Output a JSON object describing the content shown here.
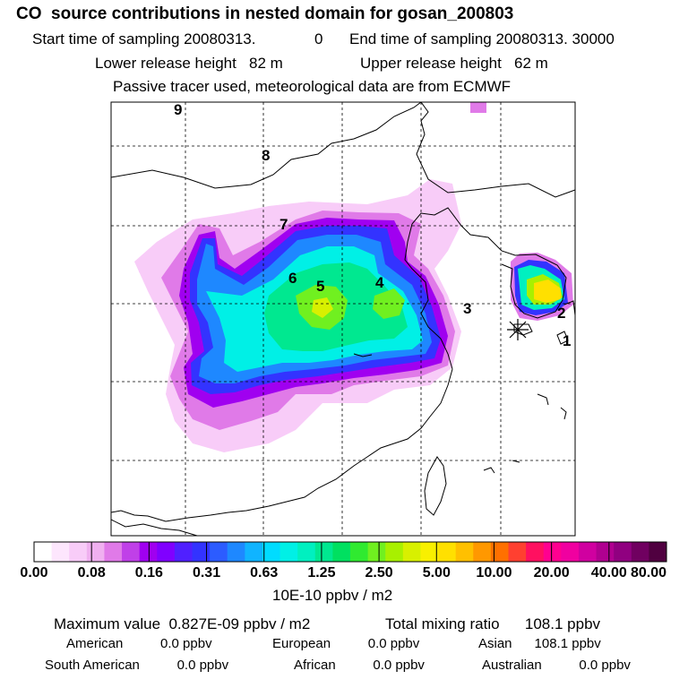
{
  "header": {
    "title": "CO  source contributions in nested domain for gosan_200803",
    "start_label": "Start time of sampling 20080313.",
    "start_hour": "0",
    "end_label": "End time of sampling 20080313. 30000",
    "lower_release": "Lower release height   82 m",
    "upper_release": "Upper release height   62 m",
    "tracer_note": "Passive tracer used, meteorological data are from ECMWF"
  },
  "map": {
    "region_labels": [
      "9",
      "8",
      "7",
      "6",
      "5",
      "4",
      "3",
      "2",
      "1"
    ],
    "receptor_marker": "asterisk-icon"
  },
  "colorbar": {
    "labels": [
      "0.00",
      "0.08",
      "0.16",
      "0.31",
      "0.63",
      "1.25",
      "2.50",
      "5.00",
      "10.00",
      "20.00",
      "40.00",
      "80.00"
    ],
    "unit": "10E-10 ppbv / m2",
    "colors": [
      "#ffffff",
      "#fde6fd",
      "#f8ccf8",
      "#f0b0f0",
      "#e07ae8",
      "#c040e8",
      "#a000f0",
      "#8000ff",
      "#5020ff",
      "#3333ff",
      "#2c5cff",
      "#1e88ff",
      "#10b4ff",
      "#00dcff",
      "#00f0e6",
      "#00f0c0",
      "#00e890",
      "#00e060",
      "#30ea30",
      "#70f020",
      "#a8f000",
      "#d8f000",
      "#f8f000",
      "#ffe000",
      "#ffc000",
      "#ff9800",
      "#ff7000",
      "#ff4030",
      "#ff1060",
      "#ff0090",
      "#f000a0",
      "#d000a0",
      "#b00090",
      "#900080",
      "#700060",
      "#500040"
    ]
  },
  "footer": {
    "max_value": "Maximum value  0.827E-09 ppbv / m2",
    "total_mixing": "Total mixing ratio      108.1 ppbv",
    "american": "American          0.0 ppbv",
    "european": "European          0.0 ppbv",
    "asian": "Asian      108.1 ppbv",
    "south_american": "South American          0.0 ppbv",
    "african": "African          0.0 ppbv",
    "australian": "Australian          0.0 ppbv"
  }
}
